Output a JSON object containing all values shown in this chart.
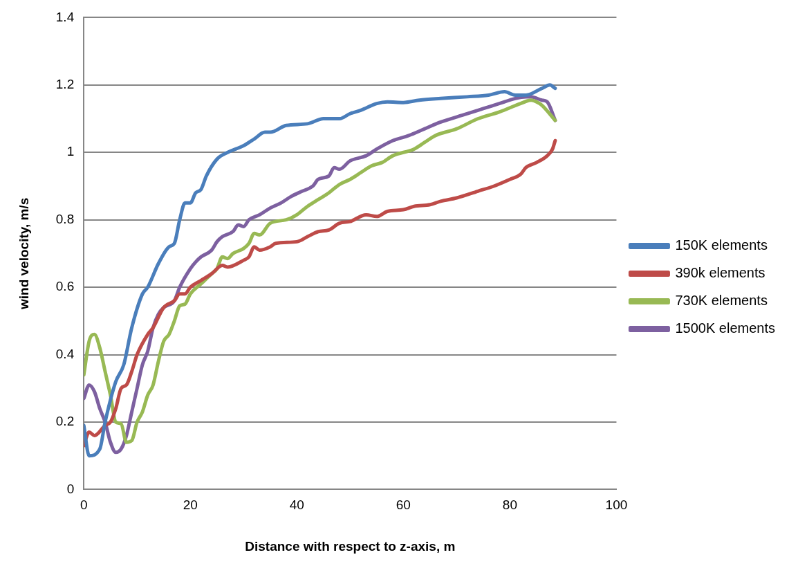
{
  "chart_data": {
    "type": "line",
    "xlabel": "Distance with respect to z-axis, m",
    "ylabel": "wind velocity, m/s",
    "xlim": [
      0,
      100
    ],
    "xticks": [
      0,
      20,
      40,
      60,
      80,
      100
    ],
    "ylim": [
      0,
      1.4
    ],
    "yticks": [
      0,
      0.2,
      0.4,
      0.6,
      0.8,
      1,
      1.2,
      1.4
    ],
    "grid": "y",
    "legend": "right",
    "marker": "none",
    "series": [
      {
        "name": "150K elements",
        "color": "#4a7ebb",
        "x": [
          0,
          1,
          3,
          4,
          6,
          7.5,
          9,
          11,
          12,
          14,
          16,
          17,
          18,
          19,
          20,
          21,
          22,
          23,
          25,
          27,
          30,
          32,
          34,
          35,
          38,
          42,
          45,
          48,
          50,
          52,
          55,
          57,
          60,
          63,
          67,
          72,
          76,
          79,
          81,
          83,
          86,
          87.5,
          88.5
        ],
        "values": [
          0.19,
          0.1,
          0.12,
          0.2,
          0.32,
          0.37,
          0.48,
          0.58,
          0.6,
          0.67,
          0.72,
          0.73,
          0.8,
          0.85,
          0.85,
          0.88,
          0.89,
          0.93,
          0.98,
          1.0,
          1.02,
          1.04,
          1.06,
          1.06,
          1.08,
          1.085,
          1.1,
          1.1,
          1.115,
          1.125,
          1.145,
          1.15,
          1.148,
          1.155,
          1.16,
          1.165,
          1.17,
          1.18,
          1.17,
          1.17,
          1.19,
          1.2,
          1.19
        ]
      },
      {
        "name": "390k elements",
        "color": "#be4b48",
        "x": [
          0,
          1,
          2,
          4,
          5,
          6,
          7,
          8,
          9,
          10,
          12,
          13,
          15,
          17,
          18,
          19,
          20,
          22,
          24,
          26,
          27,
          30,
          31,
          32,
          33,
          35,
          36,
          40,
          42,
          44,
          46,
          48,
          50,
          53,
          55,
          57,
          60,
          62,
          65,
          67,
          70,
          74,
          77,
          80,
          82,
          83,
          85,
          87,
          88,
          88.5
        ],
        "values": [
          0.13,
          0.17,
          0.16,
          0.19,
          0.2,
          0.24,
          0.3,
          0.31,
          0.35,
          0.4,
          0.46,
          0.48,
          0.54,
          0.56,
          0.58,
          0.58,
          0.6,
          0.62,
          0.64,
          0.665,
          0.66,
          0.68,
          0.69,
          0.72,
          0.71,
          0.72,
          0.73,
          0.735,
          0.75,
          0.765,
          0.77,
          0.79,
          0.795,
          0.815,
          0.81,
          0.825,
          0.83,
          0.84,
          0.845,
          0.855,
          0.865,
          0.885,
          0.9,
          0.92,
          0.935,
          0.955,
          0.97,
          0.99,
          1.01,
          1.035
        ]
      },
      {
        "name": "730K elements",
        "color": "#98b954",
        "x": [
          0,
          1,
          2,
          3,
          4,
          5,
          6,
          7,
          8,
          9,
          10,
          11,
          12,
          13,
          14,
          15,
          16,
          17,
          18,
          19,
          20,
          22,
          23,
          24,
          25,
          26,
          27,
          28,
          30,
          31,
          32,
          33,
          35,
          38,
          40,
          42,
          44,
          46,
          48,
          50,
          52,
          54,
          56,
          58,
          62,
          64,
          66,
          70,
          74,
          78,
          82,
          84,
          85,
          86,
          88.5
        ],
        "values": [
          0.34,
          0.44,
          0.46,
          0.42,
          0.35,
          0.28,
          0.2,
          0.195,
          0.14,
          0.145,
          0.2,
          0.23,
          0.28,
          0.31,
          0.38,
          0.44,
          0.46,
          0.5,
          0.545,
          0.55,
          0.58,
          0.61,
          0.625,
          0.64,
          0.655,
          0.69,
          0.685,
          0.7,
          0.715,
          0.73,
          0.76,
          0.755,
          0.79,
          0.8,
          0.815,
          0.84,
          0.86,
          0.88,
          0.905,
          0.92,
          0.94,
          0.96,
          0.97,
          0.99,
          1.01,
          1.03,
          1.05,
          1.07,
          1.1,
          1.12,
          1.145,
          1.155,
          1.15,
          1.14,
          1.095
        ]
      },
      {
        "name": "1500K elements",
        "color": "#7d60a0",
        "x": [
          0,
          1,
          2,
          3,
          4,
          5,
          6,
          7,
          8,
          9,
          10,
          11,
          12,
          13,
          14,
          15,
          17,
          18,
          20,
          21,
          22,
          24,
          25,
          26,
          28,
          29,
          30,
          31,
          33,
          35,
          37,
          39,
          41,
          43,
          44,
          46,
          47,
          48,
          50,
          53,
          55,
          58,
          61,
          64,
          67,
          71,
          75,
          78,
          81,
          83,
          84,
          86,
          87,
          88.5
        ],
        "values": [
          0.27,
          0.31,
          0.29,
          0.24,
          0.2,
          0.14,
          0.11,
          0.12,
          0.16,
          0.23,
          0.3,
          0.37,
          0.41,
          0.48,
          0.52,
          0.54,
          0.56,
          0.6,
          0.655,
          0.675,
          0.69,
          0.71,
          0.735,
          0.75,
          0.765,
          0.785,
          0.78,
          0.8,
          0.815,
          0.835,
          0.85,
          0.87,
          0.885,
          0.9,
          0.92,
          0.93,
          0.955,
          0.95,
          0.975,
          0.99,
          1.01,
          1.035,
          1.05,
          1.07,
          1.09,
          1.11,
          1.13,
          1.145,
          1.16,
          1.165,
          1.165,
          1.155,
          1.15,
          1.095
        ]
      }
    ]
  }
}
